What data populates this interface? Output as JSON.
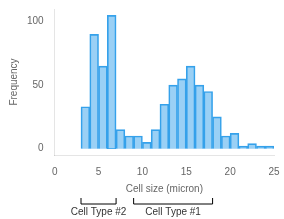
{
  "chart_data": {
    "type": "histogram",
    "xlabel": "Cell size (micron)",
    "ylabel": "Frequency",
    "bins": [
      3,
      4,
      5,
      6,
      7,
      8,
      9,
      10,
      11,
      12,
      13,
      14,
      15,
      16,
      17,
      18,
      19,
      20,
      21,
      22,
      23,
      24,
      25
    ],
    "values": [
      33,
      90,
      65,
      105,
      15,
      10,
      10,
      5,
      15,
      35,
      50,
      55,
      65,
      50,
      45,
      25,
      10,
      12,
      2,
      4,
      2,
      2
    ],
    "xlim": [
      0,
      25
    ],
    "xticks": [
      0,
      5,
      10,
      15,
      20,
      25
    ],
    "ylim": [
      -5,
      110
    ],
    "yticks": [
      0,
      50,
      100
    ],
    "grid": false,
    "annotations": [
      {
        "text": "Cell Type #2",
        "x": [
          3.0,
          7.0
        ]
      },
      {
        "text": "Cell Type #1",
        "x": [
          9.0,
          18.0
        ]
      }
    ]
  }
}
